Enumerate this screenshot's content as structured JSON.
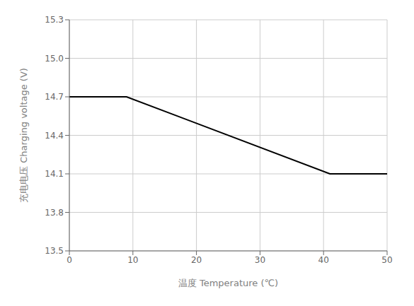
{
  "chart_data": {
    "type": "line",
    "x": [
      0,
      9,
      41,
      50
    ],
    "values": [
      14.7,
      14.7,
      14.1,
      14.1
    ],
    "color": "#000000",
    "xlabel": "温度 Temperature (℃)",
    "ylabel": "充电电压 Charging voltage (V)",
    "xlim": [
      0,
      50
    ],
    "ylim": [
      13.5,
      15.3
    ],
    "xticks": [
      0,
      10,
      20,
      30,
      40,
      50
    ],
    "yticks": [
      13.5,
      13.8,
      14.1,
      14.4,
      14.7,
      {
        "value": 15.0,
        "label": "15.0"
      },
      15.3
    ],
    "grid": true
  }
}
